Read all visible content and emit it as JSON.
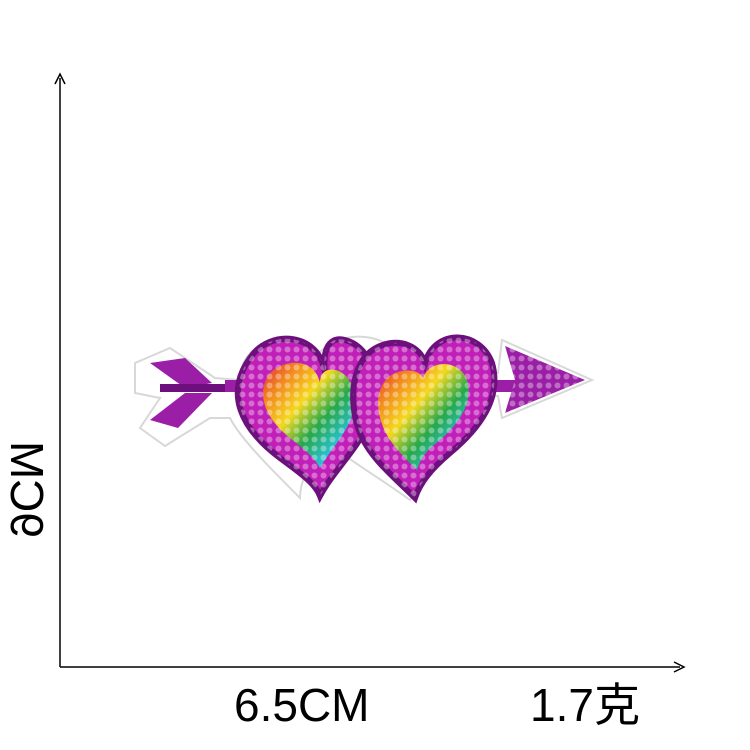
{
  "product": {
    "height_label": "9CM",
    "width_label": "6.5CM",
    "weight_label": "1.7克",
    "icon": "double-heart-arrow-sequin-patch-icon",
    "colors": {
      "purple": "#9b1fa6",
      "deep_purple": "#6d0f7c",
      "magenta": "#c020b8",
      "backing": "#ffffff",
      "shadow": "#d8d8d8",
      "sequin_red": "#e0263a",
      "sequin_orange": "#f28a1e",
      "sequin_yellow": "#f5d81f",
      "sequin_green": "#27a84a",
      "sequin_blue": "#1f6fd6",
      "sequin_cyan": "#29c2d6"
    }
  }
}
